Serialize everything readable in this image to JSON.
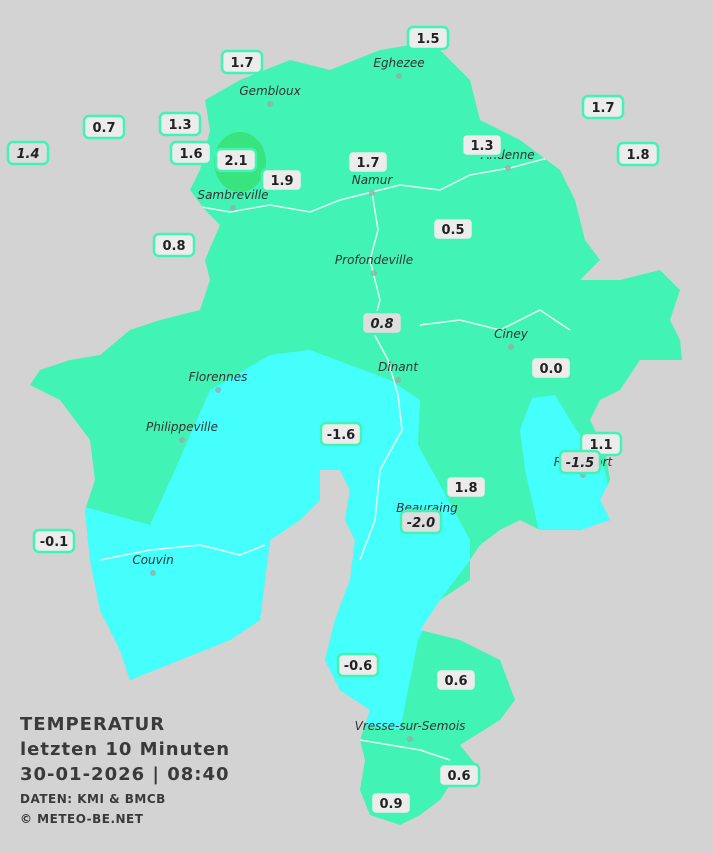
{
  "legend": {
    "title": "TEMPERATUR",
    "period": "letzten 10 Minuten",
    "timestamp": "30-01-2026 | 08:40",
    "source": "DATEN: KMI & BMCB",
    "copyright": "© METEO-BE.NET"
  },
  "cities": [
    "Eghezee",
    "Gembloux",
    "Andenne",
    "Namur",
    "Sambreville",
    "Profondeville",
    "Ciney",
    "Dinant",
    "Florennes",
    "Philippeville",
    "Rochefort",
    "Beauraing",
    "Couvin",
    "Vresse-sur-Semois"
  ],
  "stations": [
    {
      "reading": "1.5"
    },
    {
      "reading": "1.7"
    },
    {
      "reading": "1.7"
    },
    {
      "reading": "0.7"
    },
    {
      "reading": "1.3"
    },
    {
      "reading": "1.3"
    },
    {
      "reading": "1.4",
      "italic": true
    },
    {
      "reading": "1.6"
    },
    {
      "reading": "2.1"
    },
    {
      "reading": "1.7"
    },
    {
      "reading": "1.8"
    },
    {
      "reading": "1.9"
    },
    {
      "reading": "0.8"
    },
    {
      "reading": "0.5"
    },
    {
      "reading": "0.8",
      "italic": true
    },
    {
      "reading": "0.0"
    },
    {
      "reading": "-1.6"
    },
    {
      "reading": "1.1"
    },
    {
      "reading": "-1.5",
      "italic": true
    },
    {
      "reading": "1.8"
    },
    {
      "reading": "-2.0",
      "italic": true
    },
    {
      "reading": "-0.1"
    },
    {
      "reading": "-0.6"
    },
    {
      "reading": "0.6"
    },
    {
      "reading": "0.6"
    },
    {
      "reading": "0.9"
    }
  ]
}
